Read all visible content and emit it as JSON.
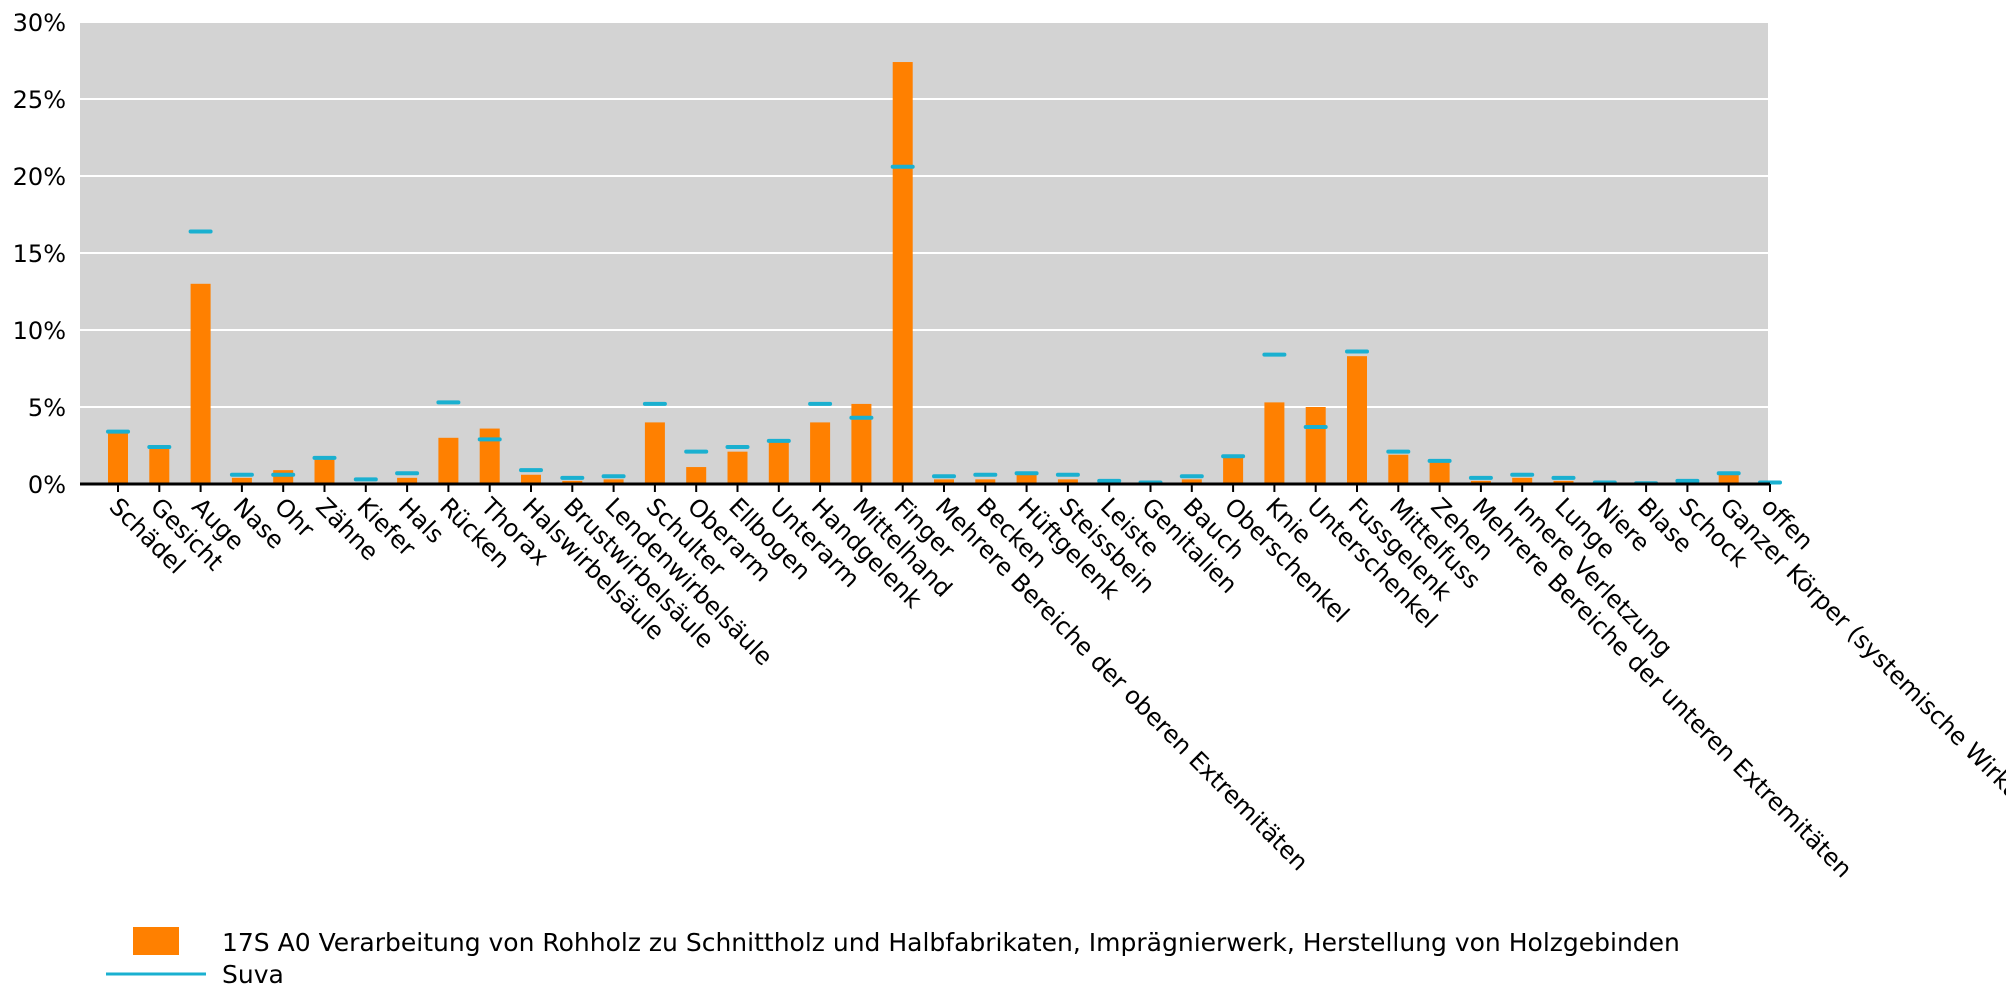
{
  "chart_data": {
    "type": "bar",
    "categories": [
      "Schädel",
      "Gesicht",
      "Auge",
      "Nase",
      "Ohr",
      "Zähne",
      "Kiefer",
      "Hals",
      "Rücken",
      "Thorax",
      "Halswirbelsäule",
      "Brustwirbelsäule",
      "Lendenwirbelsäule",
      "Schulter",
      "Oberarm",
      "Ellbogen",
      "Unterarm",
      "Handgelenk",
      "Mittelhand",
      "Finger",
      "Mehrere Bereiche der oberen Extremitäten",
      "Becken",
      "Hüftgelenk",
      "Steissbein",
      "Leiste",
      "Genitalien",
      "Bauch",
      "Oberschenkel",
      "Knie",
      "Unterschenkel",
      "Fussgelenk",
      "Mittelfuss",
      "Zehen",
      "Mehrere Bereiche der unteren Extremitäten",
      "Innere Verletzung",
      "Lunge",
      "Niere",
      "Blase",
      "Schock",
      "Ganzer Körper (systemische Wirkung)",
      "offen"
    ],
    "series": [
      {
        "name": "17S A0 Verarbeitung von Rohholz zu Schnittholz und Halbfabrikaten, Imprägnierwerk, Herstellung von Holzgebinden",
        "render": "bar",
        "color": "#ff8000",
        "values": [
          3.3,
          2.3,
          13.0,
          0.4,
          0.9,
          1.6,
          0.1,
          0.4,
          3.0,
          3.6,
          0.6,
          0.2,
          0.3,
          4.0,
          1.1,
          2.1,
          2.7,
          4.0,
          5.2,
          27.4,
          0.3,
          0.3,
          0.6,
          0.3,
          0.1,
          0.05,
          0.3,
          1.8,
          5.3,
          5.0,
          8.3,
          1.9,
          1.4,
          0.2,
          0.4,
          0.2,
          0.05,
          0.05,
          0.05,
          0.6,
          0.05
        ]
      },
      {
        "name": "Suva",
        "render": "marker",
        "color": "#1ab0d0",
        "values": [
          3.4,
          2.4,
          16.4,
          0.6,
          0.6,
          1.7,
          0.3,
          0.7,
          5.3,
          2.9,
          0.9,
          0.4,
          0.5,
          5.2,
          2.1,
          2.4,
          2.8,
          5.2,
          4.3,
          20.6,
          0.5,
          0.6,
          0.7,
          0.6,
          0.2,
          0.1,
          0.5,
          1.8,
          8.4,
          3.7,
          8.6,
          2.1,
          1.5,
          0.4,
          0.6,
          0.4,
          0.1,
          0.05,
          0.2,
          0.7,
          0.1
        ]
      }
    ],
    "ylim": [
      0,
      30
    ],
    "yticks": [
      0,
      5,
      10,
      15,
      20,
      25,
      30
    ],
    "ytick_labels": [
      "0%",
      "5%",
      "10%",
      "15%",
      "20%",
      "25%",
      "30%"
    ],
    "grid": true,
    "legend_position": "bottom-left",
    "plot_background": "#d3d3d3",
    "gridline_color": "#ffffff"
  }
}
